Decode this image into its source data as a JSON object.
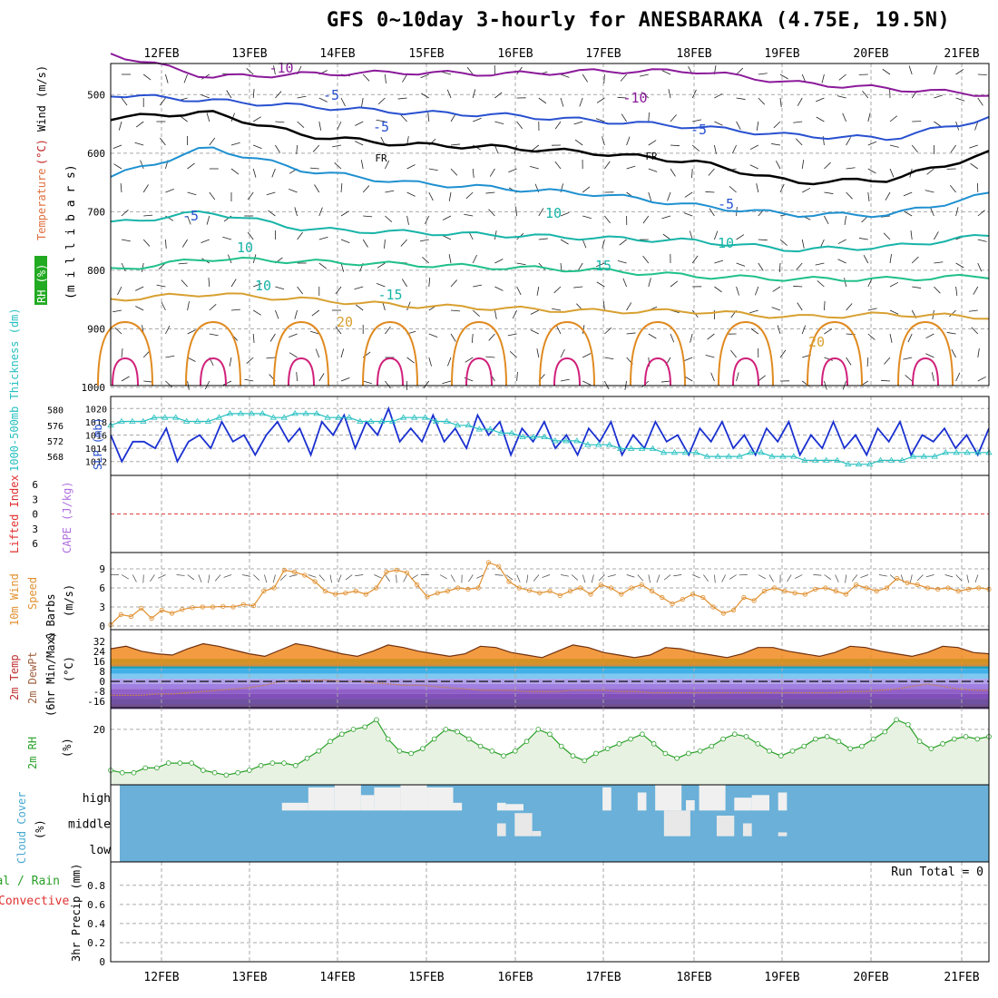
{
  "title": "GFS 0~10day 3-hourly for ANESBARAKA (4.75E, 19.5N)",
  "dates": [
    "12FEB",
    "13FEB",
    "14FEB",
    "15FEB",
    "16FEB",
    "17FEB",
    "18FEB",
    "19FEB",
    "20FEB",
    "21FEB"
  ],
  "run_total": "Run Total = 0",
  "chart_data": [
    {
      "type": "line",
      "panel": "upper-air",
      "ylabel_parts": [
        "RH (%)",
        "Temperature",
        "(°C)",
        "Wind",
        "(m/s)"
      ],
      "ylabel2": "(m i l l i b a r s)",
      "y_ticks": [
        500,
        600,
        700,
        800,
        900,
        1000
      ],
      "isotherm_labels": [
        "-10",
        "-10",
        "-5",
        "-5",
        "-5",
        "FR",
        "FR",
        "-5",
        "-5",
        "10",
        "10",
        "10",
        "10",
        "15",
        "-15",
        "20",
        "20"
      ],
      "contours": [
        {
          "label": "-10",
          "color": "#8B1a9a",
          "values": [
            430,
            470,
            465,
            462,
            465,
            460,
            460,
            480,
            490,
            500
          ]
        },
        {
          "label": "-5",
          "color": "#2850d0",
          "values": [
            500,
            510,
            520,
            530,
            535,
            545,
            555,
            570,
            575,
            540
          ]
        },
        {
          "label": "FR",
          "color": "#000000",
          "values": [
            540,
            530,
            570,
            585,
            590,
            600,
            615,
            650,
            645,
            600
          ]
        },
        {
          "label": "-5",
          "color": "#1e90d0",
          "values": [
            640,
            590,
            630,
            650,
            660,
            670,
            690,
            705,
            705,
            670
          ]
        },
        {
          "label": "10",
          "color": "#18b4a8",
          "values": [
            720,
            700,
            730,
            735,
            740,
            745,
            750,
            765,
            760,
            740
          ]
        },
        {
          "label": "15",
          "color": "#20c08c",
          "values": [
            800,
            780,
            785,
            790,
            795,
            800,
            810,
            815,
            815,
            810
          ]
        },
        {
          "label": "20",
          "color": "#d8a030",
          "values": [
            850,
            840,
            850,
            860,
            865,
            870,
            870,
            880,
            875,
            880
          ]
        }
      ]
    },
    {
      "type": "line",
      "panel": "slp-thickness",
      "ylabel_left": "1000-500mb Thickness (dm)",
      "ylabel_right": "SLP (mb)",
      "thick_ticks": [
        568,
        572,
        576,
        580
      ],
      "slp_ticks": [
        1012,
        1014,
        1016,
        1018,
        1020
      ],
      "slp": [
        1016,
        1012,
        1015,
        1015,
        1014,
        1017,
        1012,
        1015,
        1016,
        1014,
        1018,
        1015,
        1016,
        1013,
        1016,
        1018,
        1015,
        1017,
        1013,
        1018,
        1016,
        1019,
        1014,
        1018,
        1016,
        1020,
        1015,
        1017,
        1015,
        1019,
        1015,
        1017,
        1014,
        1019,
        1016,
        1018,
        1013,
        1017,
        1015,
        1018,
        1014,
        1016,
        1013,
        1017,
        1015,
        1018,
        1013,
        1016,
        1014,
        1018,
        1015,
        1016,
        1013,
        1017,
        1015,
        1018,
        1014,
        1016,
        1013,
        1017,
        1015,
        1018,
        1013,
        1016,
        1014,
        1018,
        1014,
        1016,
        1013,
        1017,
        1015,
        1018,
        1013,
        1016,
        1015,
        1017,
        1014,
        1016,
        1013,
        1017
      ],
      "thickness": [
        576,
        577,
        577,
        577,
        578,
        578,
        578,
        577,
        577,
        577,
        578,
        579,
        579,
        579,
        579,
        578,
        578,
        579,
        579,
        579,
        578,
        578,
        578,
        577,
        577,
        577,
        577,
        578,
        578,
        578,
        577,
        577,
        576,
        576,
        575,
        575,
        574,
        574,
        573,
        573,
        573,
        572,
        572,
        572,
        571,
        571,
        571,
        570,
        570,
        570,
        570,
        569,
        569,
        569,
        569,
        568,
        568,
        568,
        568,
        569,
        569,
        568,
        568,
        568,
        567,
        567,
        567,
        567,
        566,
        566,
        566,
        567,
        567,
        567,
        568,
        568,
        568,
        569,
        569,
        569,
        569,
        569
      ]
    },
    {
      "type": "line",
      "panel": "stability",
      "ylabel_left": "Lifted Index",
      "ylabel_right": "CAPE (J/kg)",
      "y_ticks": [
        -6,
        -3,
        0,
        3,
        6
      ],
      "lifted_index_zero_line": 0
    },
    {
      "type": "line",
      "panel": "wind10m",
      "ylabel": "10m Wind Speed (m/s) & Barbs",
      "ylabel_parts": [
        "10m Wind",
        "Speed",
        "& Barbs",
        "(m/s)"
      ],
      "y_ticks": [
        0,
        3,
        6,
        9
      ],
      "values": [
        0.2,
        1.8,
        1.5,
        2.8,
        1.2,
        2.5,
        2.0,
        2.6,
        2.9,
        3.0,
        3.0,
        3.1,
        3.0,
        3.4,
        3.2,
        5.5,
        6.0,
        8.8,
        8.5,
        8.0,
        7.0,
        5.5,
        5.0,
        5.2,
        5.5,
        5.0,
        6.0,
        8.5,
        8.8,
        8.4,
        6.5,
        4.6,
        5.2,
        5.5,
        6.0,
        5.8,
        6.0,
        10.0,
        9.4,
        7.0,
        6.0,
        5.6,
        5.2,
        5.5,
        4.8,
        5.5,
        6.0,
        5.0,
        6.5,
        6.0,
        5.0,
        6.0,
        6.5,
        5.5,
        4.5,
        3.5,
        4.2,
        5.0,
        4.5,
        3.0,
        2.0,
        2.5,
        4.5,
        4.0,
        5.5,
        6.0,
        5.5,
        5.2,
        5.0,
        5.8,
        6.0,
        5.5,
        5.0,
        6.5,
        6.0,
        5.5,
        6.0,
        7.5,
        6.8,
        6.5,
        6.0,
        5.8,
        6.0,
        5.5,
        5.8,
        6.0,
        5.8
      ]
    },
    {
      "type": "area",
      "panel": "temp2m",
      "ylabel_parts": [
        "2m Temp",
        "2m DewPt",
        "(6hr Min/Max)",
        "(°C)"
      ],
      "y_ticks": [
        32,
        24,
        16,
        8,
        0,
        -8,
        -16
      ],
      "temp": [
        26,
        28,
        24,
        22,
        21,
        26,
        30,
        28,
        25,
        22,
        20,
        25,
        30,
        28,
        25,
        22,
        20,
        24,
        29,
        27,
        24,
        22,
        20,
        22,
        28,
        27,
        23,
        21,
        19,
        24,
        29,
        27,
        23,
        21,
        19,
        21,
        27,
        26,
        23,
        21,
        19,
        22,
        27,
        27,
        24,
        22,
        20,
        23,
        28,
        27,
        24,
        22,
        20,
        23,
        28,
        27,
        23,
        22
      ],
      "dewpoint": [
        -11,
        -11,
        -11,
        -10,
        -10,
        -9,
        -8,
        -7,
        -6,
        -5,
        -3,
        0,
        1,
        1,
        1,
        0,
        0,
        -1,
        -2,
        -3,
        -3,
        -4,
        -5,
        -6,
        -7,
        -7,
        -7,
        -8,
        -8,
        -8,
        -7,
        -7,
        -7,
        -8,
        -8,
        -9,
        -9,
        -9,
        -9,
        -9,
        -9,
        -9,
        -9,
        -9,
        -9,
        -9,
        -9,
        -9,
        -8,
        -8,
        -7,
        -6,
        -4,
        -2,
        -4,
        -6,
        -7,
        -7
      ]
    },
    {
      "type": "area",
      "panel": "rh2m",
      "ylabel": "2m RH (%)",
      "y_ticks": [
        20
      ],
      "values": [
        3,
        2,
        2,
        4,
        4,
        6,
        6,
        6,
        3,
        2,
        1,
        2,
        3,
        5,
        6,
        6,
        5,
        8,
        11,
        15,
        18,
        20,
        21,
        24,
        16,
        11,
        10,
        12,
        16,
        20,
        19,
        16,
        13,
        11,
        9,
        11,
        15,
        20,
        18,
        13,
        9,
        7,
        10,
        12,
        14,
        16,
        18,
        14,
        10,
        8,
        10,
        11,
        13,
        16,
        18,
        17,
        14,
        11,
        9,
        11,
        13,
        16,
        17,
        15,
        12,
        13,
        16,
        19,
        24,
        22,
        15,
        12,
        14,
        16,
        17,
        16,
        17
      ]
    },
    {
      "type": "heatmap",
      "panel": "cloud",
      "ylabel": "Cloud Cover (%)",
      "rows": [
        "high",
        "middle",
        "low"
      ],
      "high_blocks": [
        [
          0.195,
          0.225,
          0.3
        ],
        [
          0.225,
          0.255,
          0.9
        ],
        [
          0.255,
          0.285,
          1.0
        ],
        [
          0.285,
          0.3,
          0.6
        ],
        [
          0.3,
          0.33,
          0.9
        ],
        [
          0.33,
          0.36,
          1.0
        ],
        [
          0.36,
          0.39,
          0.9
        ],
        [
          0.39,
          0.4,
          0.3
        ],
        [
          0.44,
          0.45,
          0.3
        ],
        [
          0.45,
          0.47,
          0.25
        ],
        [
          0.56,
          0.57,
          0.9
        ],
        [
          0.6,
          0.61,
          0.7
        ],
        [
          0.62,
          0.65,
          1.0
        ],
        [
          0.655,
          0.665,
          0.4
        ],
        [
          0.67,
          0.7,
          1.0
        ],
        [
          0.71,
          0.73,
          0.5
        ],
        [
          0.73,
          0.75,
          0.6
        ],
        [
          0.76,
          0.77,
          0.7
        ]
      ],
      "mid_blocks": [
        [
          0.44,
          0.45,
          0.5
        ],
        [
          0.46,
          0.48,
          0.9
        ],
        [
          0.48,
          0.49,
          0.2
        ],
        [
          0.63,
          0.66,
          1.0
        ],
        [
          0.69,
          0.71,
          0.8
        ],
        [
          0.72,
          0.73,
          0.5
        ],
        [
          0.76,
          0.77,
          0.15
        ]
      ]
    },
    {
      "type": "bar",
      "panel": "precip",
      "ylabel_parts": [
        "Total / Rain",
        "Convective",
        "3hr Precip (mm)"
      ],
      "y_ticks": [
        0,
        0.2,
        0.4,
        0.6,
        0.8
      ],
      "values": []
    }
  ],
  "colors": {
    "cloud_blue": "#6ab0d8",
    "rh_fill": "#e8f2e2",
    "rh_line": "#28a028",
    "wind_line": "#e09030",
    "slp_line": "#1a30d0",
    "thick_line": "#28c0c0"
  }
}
